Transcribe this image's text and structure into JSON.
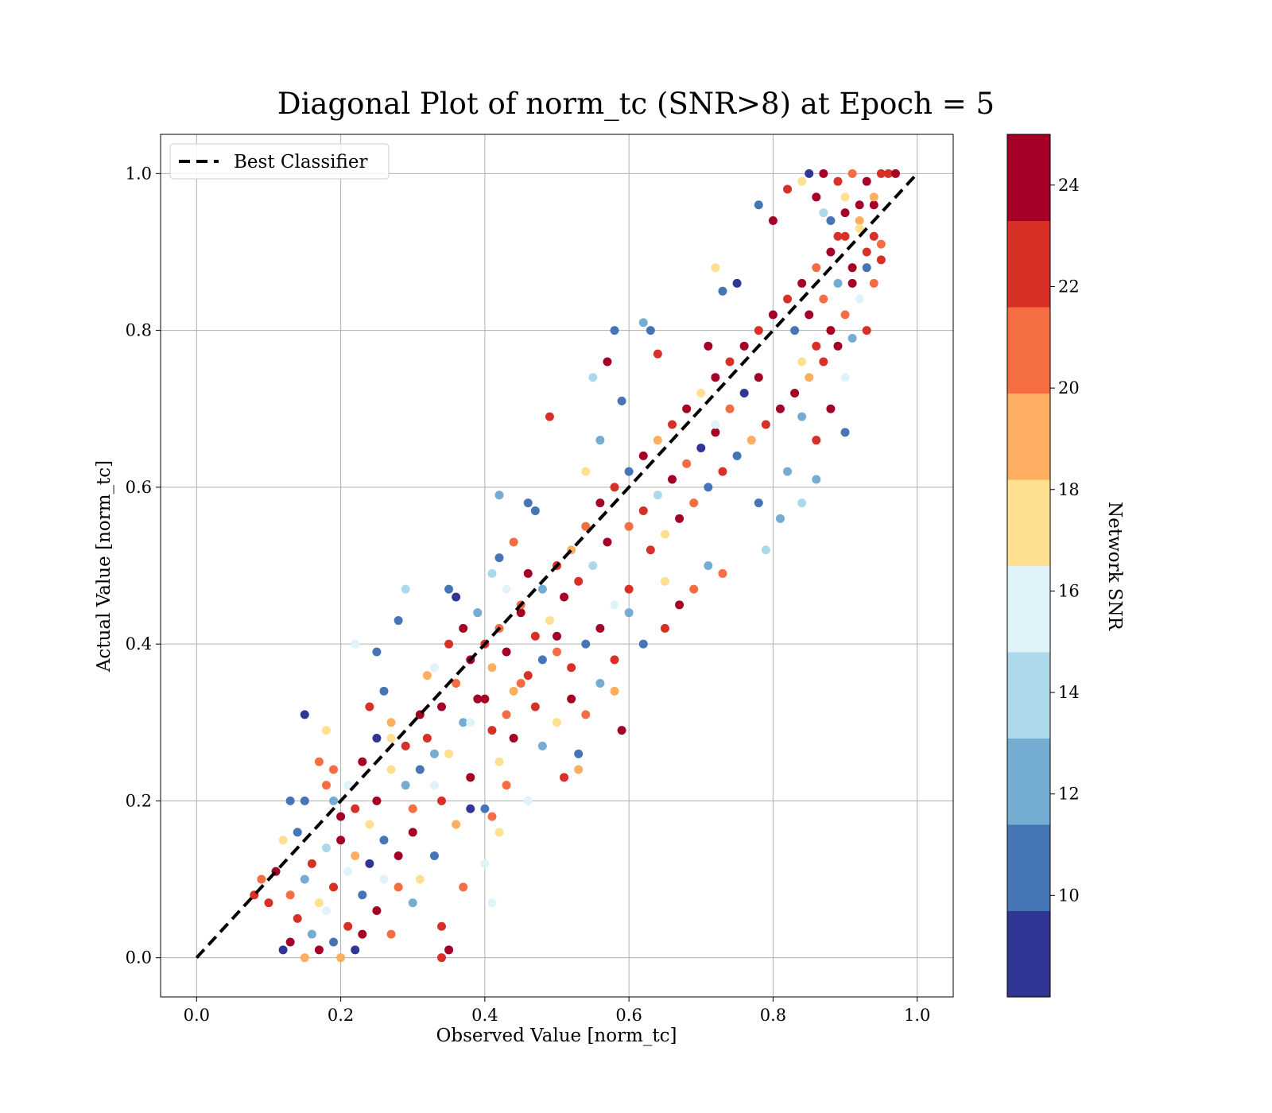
{
  "chart_data": {
    "type": "scatter",
    "title": "Diagonal Plot of norm_tc (SNR>8) at Epoch = 5",
    "xlabel": "Observed Value [norm_tc]",
    "ylabel": "Actual Value [norm_tc]",
    "xlim": [
      -0.05,
      1.05
    ],
    "ylim": [
      -0.05,
      1.05
    ],
    "xticks": [
      0.0,
      0.2,
      0.4,
      0.6,
      0.8,
      1.0
    ],
    "yticks": [
      0.0,
      0.2,
      0.4,
      0.6,
      0.8,
      1.0
    ],
    "xtick_labels": [
      "0.0",
      "0.2",
      "0.4",
      "0.6",
      "0.8",
      "1.0"
    ],
    "ytick_labels": [
      "0.0",
      "0.2",
      "0.4",
      "0.6",
      "0.8",
      "1.0"
    ],
    "grid": true,
    "reference_line": {
      "label": "Best Classifier",
      "x": [
        0.0,
        1.0
      ],
      "y": [
        0.0,
        1.0
      ],
      "style": "dashed",
      "color": "#000000"
    },
    "legend": {
      "position": "upper-left",
      "entries": [
        "Best Classifier"
      ]
    },
    "colorbar": {
      "label": "Network SNR",
      "range": [
        8,
        25
      ],
      "ticks": [
        10,
        12,
        14,
        16,
        18,
        20,
        22,
        24
      ],
      "tick_labels": [
        "10",
        "12",
        "14",
        "16",
        "18",
        "20",
        "22",
        "24"
      ],
      "colors": [
        "#313695",
        "#4575b4",
        "#74add1",
        "#abd9e9",
        "#e0f3f8",
        "#fee090",
        "#fdae61",
        "#f46d43",
        "#d73027",
        "#a50026"
      ]
    },
    "points": [
      [
        0.12,
        0.01,
        9
      ],
      [
        0.13,
        0.02,
        24
      ],
      [
        0.14,
        0.05,
        22
      ],
      [
        0.15,
        0.0,
        19
      ],
      [
        0.16,
        0.03,
        13
      ],
      [
        0.17,
        0.01,
        24
      ],
      [
        0.18,
        0.06,
        16
      ],
      [
        0.19,
        0.02,
        11
      ],
      [
        0.2,
        0.0,
        19
      ],
      [
        0.21,
        0.04,
        22
      ],
      [
        0.22,
        0.01,
        9
      ],
      [
        0.23,
        0.03,
        24
      ],
      [
        0.13,
        0.08,
        21
      ],
      [
        0.15,
        0.1,
        12
      ],
      [
        0.17,
        0.07,
        18
      ],
      [
        0.19,
        0.09,
        23
      ],
      [
        0.21,
        0.11,
        15
      ],
      [
        0.23,
        0.08,
        10
      ],
      [
        0.25,
        0.06,
        24
      ],
      [
        0.27,
        0.03,
        20
      ],
      [
        0.12,
        0.15,
        17
      ],
      [
        0.14,
        0.16,
        11
      ],
      [
        0.16,
        0.12,
        22
      ],
      [
        0.18,
        0.14,
        14
      ],
      [
        0.2,
        0.15,
        24
      ],
      [
        0.22,
        0.13,
        19
      ],
      [
        0.24,
        0.12,
        9
      ],
      [
        0.26,
        0.1,
        16
      ],
      [
        0.28,
        0.09,
        21
      ],
      [
        0.3,
        0.07,
        13
      ],
      [
        0.1,
        0.07,
        23
      ],
      [
        0.11,
        0.11,
        24
      ],
      [
        0.09,
        0.1,
        20
      ],
      [
        0.08,
        0.08,
        22
      ],
      [
        0.25,
        0.2,
        24
      ],
      [
        0.27,
        0.24,
        18
      ],
      [
        0.29,
        0.27,
        22
      ],
      [
        0.31,
        0.24,
        11
      ],
      [
        0.33,
        0.22,
        16
      ],
      [
        0.3,
        0.19,
        21
      ],
      [
        0.19,
        0.24,
        20
      ],
      [
        0.21,
        0.22,
        15
      ],
      [
        0.23,
        0.25,
        24
      ],
      [
        0.25,
        0.28,
        9
      ],
      [
        0.27,
        0.3,
        19
      ],
      [
        0.29,
        0.22,
        12
      ],
      [
        0.22,
        0.19,
        23
      ],
      [
        0.24,
        0.17,
        17
      ],
      [
        0.26,
        0.15,
        10
      ],
      [
        0.28,
        0.13,
        24
      ],
      [
        0.15,
        0.31,
        9
      ],
      [
        0.13,
        0.2,
        10
      ],
      [
        0.15,
        0.2,
        10
      ],
      [
        0.25,
        0.39,
        10
      ],
      [
        0.28,
        0.43,
        11
      ],
      [
        0.29,
        0.47,
        14
      ],
      [
        0.35,
        0.47,
        11
      ],
      [
        0.36,
        0.46,
        9
      ],
      [
        0.22,
        0.4,
        15
      ],
      [
        0.18,
        0.29,
        17
      ],
      [
        0.32,
        0.28,
        23
      ],
      [
        0.34,
        0.32,
        24
      ],
      [
        0.36,
        0.35,
        21
      ],
      [
        0.38,
        0.38,
        24
      ],
      [
        0.4,
        0.4,
        22
      ],
      [
        0.42,
        0.42,
        20
      ],
      [
        0.35,
        0.26,
        18
      ],
      [
        0.37,
        0.3,
        13
      ],
      [
        0.39,
        0.33,
        24
      ],
      [
        0.41,
        0.29,
        22
      ],
      [
        0.33,
        0.37,
        15
      ],
      [
        0.35,
        0.4,
        23
      ],
      [
        0.37,
        0.42,
        24
      ],
      [
        0.39,
        0.44,
        12
      ],
      [
        0.41,
        0.37,
        19
      ],
      [
        0.43,
        0.39,
        24
      ],
      [
        0.45,
        0.35,
        21
      ],
      [
        0.47,
        0.32,
        23
      ],
      [
        0.44,
        0.28,
        24
      ],
      [
        0.42,
        0.25,
        17
      ],
      [
        0.34,
        0.2,
        22
      ],
      [
        0.36,
        0.17,
        19
      ],
      [
        0.38,
        0.19,
        9
      ],
      [
        0.4,
        0.19,
        10
      ],
      [
        0.41,
        0.18,
        20
      ],
      [
        0.42,
        0.16,
        17
      ],
      [
        0.4,
        0.12,
        16
      ],
      [
        0.34,
        0.04,
        23
      ],
      [
        0.35,
        0.01,
        24
      ],
      [
        0.34,
        0.0,
        22
      ],
      [
        0.37,
        0.09,
        20
      ],
      [
        0.41,
        0.07,
        16
      ],
      [
        0.31,
        0.1,
        17
      ],
      [
        0.33,
        0.13,
        10
      ],
      [
        0.3,
        0.16,
        24
      ],
      [
        0.38,
        0.23,
        24
      ],
      [
        0.43,
        0.22,
        20
      ],
      [
        0.46,
        0.2,
        15
      ],
      [
        0.48,
        0.27,
        13
      ],
      [
        0.5,
        0.3,
        18
      ],
      [
        0.42,
        0.51,
        10
      ],
      [
        0.44,
        0.53,
        20
      ],
      [
        0.46,
        0.49,
        24
      ],
      [
        0.48,
        0.47,
        12
      ],
      [
        0.5,
        0.5,
        23
      ],
      [
        0.52,
        0.52,
        19
      ],
      [
        0.54,
        0.55,
        21
      ],
      [
        0.46,
        0.58,
        10
      ],
      [
        0.47,
        0.57,
        10
      ],
      [
        0.42,
        0.59,
        12
      ],
      [
        0.45,
        0.44,
        24
      ],
      [
        0.47,
        0.41,
        22
      ],
      [
        0.49,
        0.43,
        17
      ],
      [
        0.51,
        0.46,
        24
      ],
      [
        0.53,
        0.48,
        22
      ],
      [
        0.55,
        0.5,
        14
      ],
      [
        0.57,
        0.53,
        24
      ],
      [
        0.5,
        0.39,
        20
      ],
      [
        0.52,
        0.37,
        23
      ],
      [
        0.54,
        0.4,
        11
      ],
      [
        0.56,
        0.42,
        24
      ],
      [
        0.58,
        0.45,
        16
      ],
      [
        0.6,
        0.47,
        23
      ],
      [
        0.52,
        0.33,
        24
      ],
      [
        0.54,
        0.31,
        21
      ],
      [
        0.56,
        0.35,
        13
      ],
      [
        0.58,
        0.38,
        23
      ],
      [
        0.51,
        0.23,
        22
      ],
      [
        0.53,
        0.24,
        19
      ],
      [
        0.53,
        0.26,
        11
      ],
      [
        0.49,
        0.69,
        23
      ],
      [
        0.55,
        0.74,
        14
      ],
      [
        0.57,
        0.76,
        24
      ],
      [
        0.58,
        0.8,
        10
      ],
      [
        0.63,
        0.8,
        10
      ],
      [
        0.62,
        0.81,
        12
      ],
      [
        0.64,
        0.77,
        23
      ],
      [
        0.59,
        0.71,
        11
      ],
      [
        0.56,
        0.66,
        13
      ],
      [
        0.54,
        0.62,
        18
      ],
      [
        0.56,
        0.58,
        24
      ],
      [
        0.58,
        0.6,
        22
      ],
      [
        0.6,
        0.62,
        11
      ],
      [
        0.62,
        0.64,
        24
      ],
      [
        0.64,
        0.66,
        19
      ],
      [
        0.66,
        0.68,
        22
      ],
      [
        0.68,
        0.7,
        24
      ],
      [
        0.6,
        0.55,
        20
      ],
      [
        0.62,
        0.57,
        23
      ],
      [
        0.64,
        0.59,
        14
      ],
      [
        0.66,
        0.61,
        24
      ],
      [
        0.68,
        0.63,
        21
      ],
      [
        0.7,
        0.65,
        9
      ],
      [
        0.72,
        0.67,
        24
      ],
      [
        0.63,
        0.52,
        22
      ],
      [
        0.65,
        0.54,
        17
      ],
      [
        0.67,
        0.56,
        24
      ],
      [
        0.69,
        0.58,
        20
      ],
      [
        0.71,
        0.6,
        10
      ],
      [
        0.73,
        0.62,
        23
      ],
      [
        0.65,
        0.48,
        18
      ],
      [
        0.67,
        0.45,
        24
      ],
      [
        0.69,
        0.47,
        21
      ],
      [
        0.71,
        0.5,
        13
      ],
      [
        0.73,
        0.49,
        20
      ],
      [
        0.62,
        0.4,
        10
      ],
      [
        0.65,
        0.42,
        23
      ],
      [
        0.6,
        0.44,
        12
      ],
      [
        0.59,
        0.29,
        24
      ],
      [
        0.58,
        0.34,
        19
      ],
      [
        0.7,
        0.72,
        18
      ],
      [
        0.72,
        0.74,
        24
      ],
      [
        0.74,
        0.76,
        23
      ],
      [
        0.76,
        0.78,
        24
      ],
      [
        0.78,
        0.8,
        22
      ],
      [
        0.8,
        0.82,
        24
      ],
      [
        0.72,
        0.68,
        16
      ],
      [
        0.74,
        0.7,
        21
      ],
      [
        0.76,
        0.72,
        9
      ],
      [
        0.78,
        0.74,
        24
      ],
      [
        0.75,
        0.64,
        11
      ],
      [
        0.77,
        0.66,
        19
      ],
      [
        0.79,
        0.68,
        23
      ],
      [
        0.81,
        0.7,
        24
      ],
      [
        0.78,
        0.58,
        10
      ],
      [
        0.81,
        0.56,
        12
      ],
      [
        0.79,
        0.52,
        14
      ],
      [
        0.84,
        0.58,
        14
      ],
      [
        0.86,
        0.61,
        12
      ],
      [
        0.82,
        0.62,
        13
      ],
      [
        0.71,
        0.78,
        24
      ],
      [
        0.73,
        0.85,
        10
      ],
      [
        0.75,
        0.86,
        9
      ],
      [
        0.72,
        0.88,
        18
      ],
      [
        0.78,
        0.96,
        10
      ],
      [
        0.8,
        0.94,
        24
      ],
      [
        0.82,
        0.98,
        23
      ],
      [
        0.84,
        0.99,
        17
      ],
      [
        0.85,
        1.0,
        9
      ],
      [
        0.86,
        0.97,
        24
      ],
      [
        0.82,
        0.84,
        22
      ],
      [
        0.84,
        0.86,
        24
      ],
      [
        0.86,
        0.88,
        20
      ],
      [
        0.88,
        0.9,
        24
      ],
      [
        0.9,
        0.92,
        22
      ],
      [
        0.92,
        0.94,
        19
      ],
      [
        0.94,
        0.96,
        24
      ],
      [
        0.83,
        0.8,
        11
      ],
      [
        0.85,
        0.82,
        24
      ],
      [
        0.87,
        0.84,
        21
      ],
      [
        0.89,
        0.86,
        13
      ],
      [
        0.91,
        0.88,
        24
      ],
      [
        0.93,
        0.9,
        22
      ],
      [
        0.84,
        0.76,
        17
      ],
      [
        0.86,
        0.78,
        23
      ],
      [
        0.88,
        0.8,
        24
      ],
      [
        0.9,
        0.82,
        20
      ],
      [
        0.92,
        0.84,
        15
      ],
      [
        0.94,
        0.86,
        21
      ],
      [
        0.83,
        0.72,
        24
      ],
      [
        0.85,
        0.74,
        19
      ],
      [
        0.87,
        0.76,
        22
      ],
      [
        0.89,
        0.78,
        24
      ],
      [
        0.91,
        0.79,
        13
      ],
      [
        0.93,
        0.8,
        22
      ],
      [
        0.88,
        0.7,
        24
      ],
      [
        0.9,
        0.67,
        10
      ],
      [
        0.86,
        0.66,
        23
      ],
      [
        0.84,
        0.69,
        12
      ],
      [
        0.9,
        0.74,
        16
      ],
      [
        0.87,
        1.0,
        24
      ],
      [
        0.89,
        0.99,
        22
      ],
      [
        0.91,
        1.0,
        20
      ],
      [
        0.93,
        0.99,
        24
      ],
      [
        0.95,
        1.0,
        23
      ],
      [
        0.96,
        1.0,
        22
      ],
      [
        0.97,
        1.0,
        24
      ],
      [
        0.9,
        0.97,
        18
      ],
      [
        0.92,
        0.96,
        24
      ],
      [
        0.94,
        0.97,
        19
      ],
      [
        0.88,
        0.94,
        11
      ],
      [
        0.9,
        0.95,
        24
      ],
      [
        0.92,
        0.93,
        17
      ],
      [
        0.94,
        0.92,
        23
      ],
      [
        0.95,
        0.91,
        20
      ],
      [
        0.93,
        0.88,
        10
      ],
      [
        0.91,
        0.86,
        24
      ],
      [
        0.89,
        0.92,
        22
      ],
      [
        0.87,
        0.95,
        14
      ],
      [
        0.95,
        0.89,
        22
      ],
      [
        0.26,
        0.34,
        11
      ],
      [
        0.24,
        0.32,
        22
      ],
      [
        0.27,
        0.28,
        17
      ],
      [
        0.31,
        0.31,
        24
      ],
      [
        0.32,
        0.36,
        19
      ],
      [
        0.33,
        0.26,
        13
      ],
      [
        0.2,
        0.18,
        24
      ],
      [
        0.18,
        0.22,
        21
      ],
      [
        0.17,
        0.25,
        20
      ],
      [
        0.19,
        0.2,
        12
      ],
      [
        0.38,
        0.3,
        16
      ],
      [
        0.4,
        0.33,
        24
      ],
      [
        0.43,
        0.31,
        21
      ],
      [
        0.44,
        0.34,
        19
      ],
      [
        0.46,
        0.36,
        23
      ],
      [
        0.48,
        0.38,
        11
      ],
      [
        0.5,
        0.41,
        24
      ],
      [
        0.45,
        0.45,
        20
      ],
      [
        0.43,
        0.47,
        16
      ],
      [
        0.41,
        0.49,
        14
      ]
    ]
  }
}
